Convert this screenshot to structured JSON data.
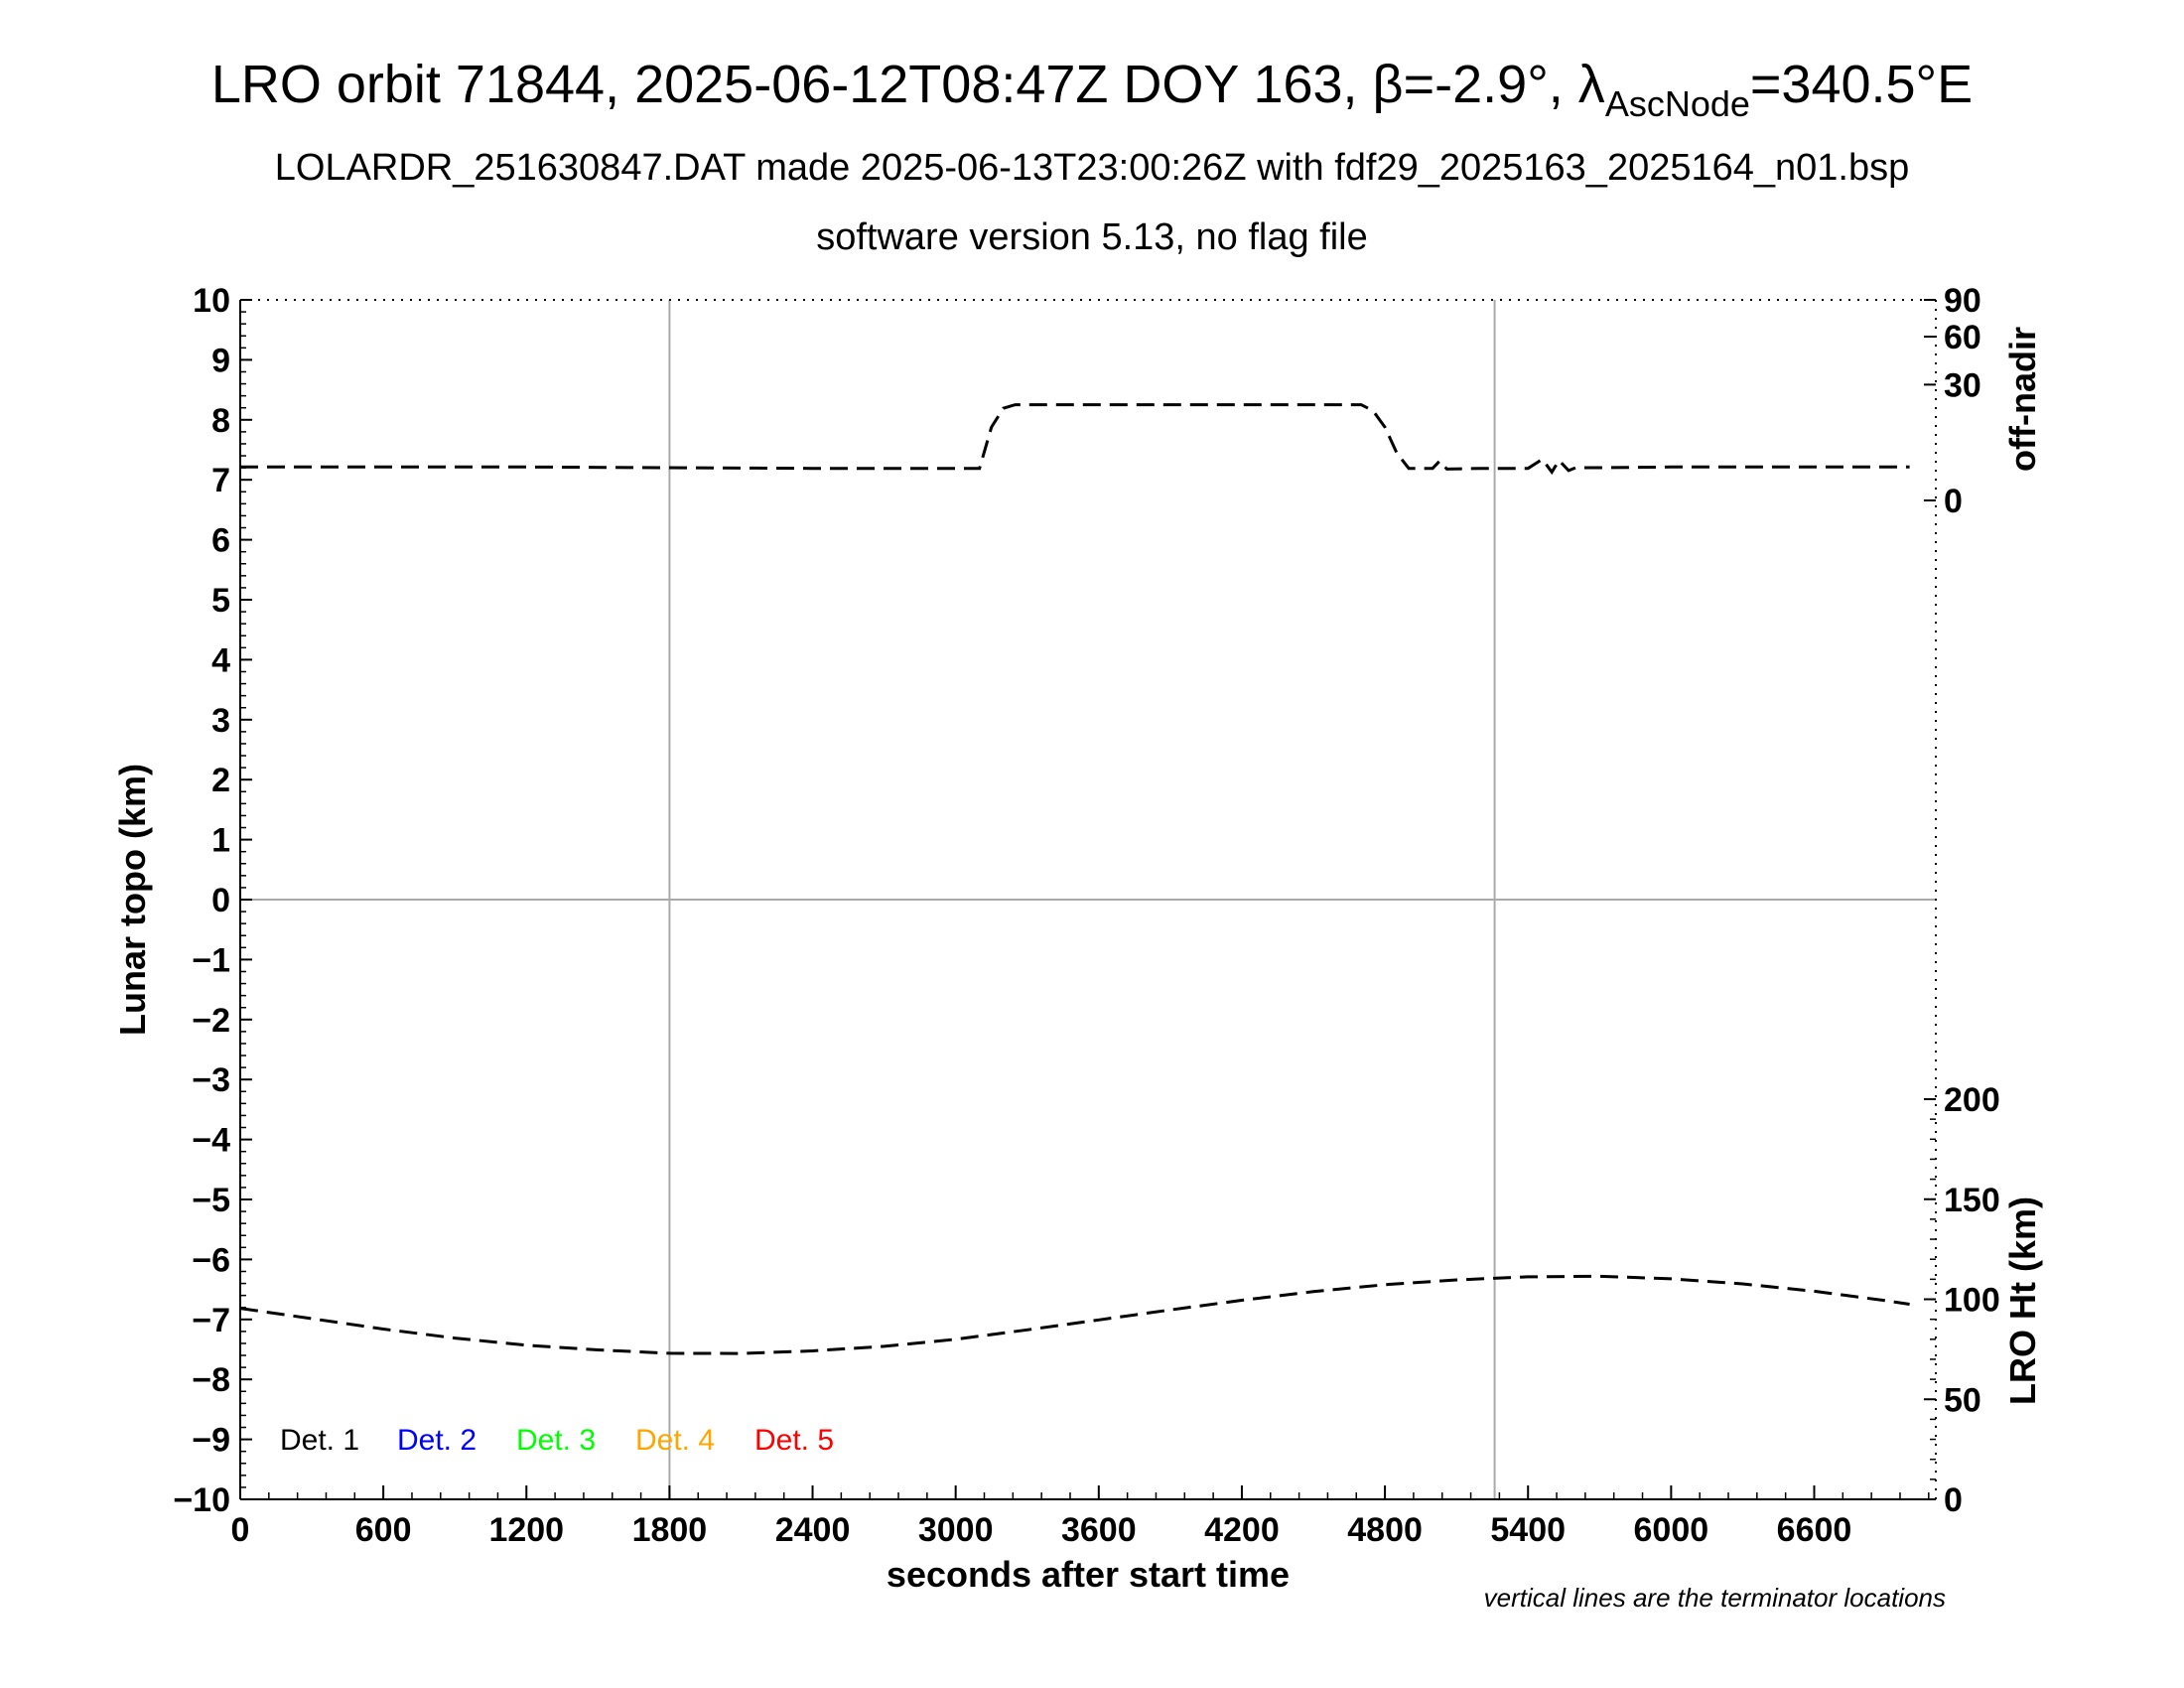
{
  "title": {
    "line1_main": "LRO orbit 71844, 2025-06-12T08:47Z DOY 163, β=-2.9°, λ",
    "line1_sub": "AscNode",
    "line1_end": "=340.5°E",
    "line2": "LOLARDR_251630847.DAT made 2025-06-13T23:00:26Z with fdf29_2025163_2025164_n01.bsp",
    "line3": "software version 5.13, no flag file"
  },
  "note": "vertical lines are the terminator locations",
  "chart_data": {
    "type": "line",
    "xlabel": "seconds after start time",
    "ylabel": "Lunar topo (km)",
    "y2_top_label": "off-nadir",
    "y2_bottom_label": "LRO Ht (km)",
    "xlim": [
      0,
      7110
    ],
    "ylim": [
      -10,
      10
    ],
    "x_ticks": [
      0,
      600,
      1200,
      1800,
      2400,
      3000,
      3600,
      4200,
      4800,
      5400,
      6000,
      6600
    ],
    "x_tick_labels": [
      "0",
      "600",
      "1200",
      "1800",
      "2400",
      "3000",
      "3600",
      "4200",
      "4800",
      "5400",
      "6000",
      "6600"
    ],
    "y_ticks": [
      10,
      9,
      8,
      7,
      6,
      5,
      4,
      3,
      2,
      1,
      0,
      -1,
      -2,
      -3,
      -4,
      -5,
      -6,
      -7,
      -8,
      -9,
      -10
    ],
    "y_tick_labels": [
      "10",
      "9",
      "8",
      "7",
      "6",
      "5",
      "4",
      "3",
      "2",
      "1",
      "0",
      "−1",
      "−2",
      "−3",
      "−4",
      "−5",
      "−6",
      "−7",
      "−8",
      "−9",
      "−10"
    ],
    "offnadir_ticks": [
      0,
      30,
      60,
      90
    ],
    "offnadir_tick_labels": [
      "0",
      "30",
      "60",
      "90"
    ],
    "ht_ticks": [
      0,
      50,
      100,
      150,
      200
    ],
    "ht_tick_labels": [
      "0",
      "50",
      "100",
      "150",
      "200"
    ],
    "terminator_x": [
      1800,
      5260
    ],
    "grid": "horizontal line at 0 and vertical terminator lines",
    "legend": [
      {
        "label": "Det. 1",
        "color": "#000000"
      },
      {
        "label": "Det. 2",
        "color": "#0000ff"
      },
      {
        "label": "Det. 3",
        "color": "#00ff00"
      },
      {
        "label": "Det. 4",
        "color": "#ffa500"
      },
      {
        "label": "Det. 5",
        "color": "#ff0000"
      }
    ],
    "legend_position": "bottom-left",
    "series": [
      {
        "name": "off-nadir",
        "axis": "off-nadir (deg)",
        "style": "dashed",
        "color": "#000000",
        "x": [
          0,
          600,
          1200,
          1800,
          2400,
          3000,
          3100,
          3150,
          3200,
          3250,
          3600,
          4200,
          4700,
          4750,
          4800,
          4850,
          4900,
          5000,
          5030,
          5060,
          5200,
          5350,
          5400,
          5460,
          5500,
          5530,
          5570,
          5600,
          5700,
          6000,
          6600,
          7000
        ],
        "y": [
          2.5,
          2.5,
          2.5,
          2.4,
          2.3,
          2.3,
          2.3,
          12,
          19,
          20.5,
          20.5,
          20.5,
          20.5,
          18,
          12,
          5,
          2.3,
          2.3,
          3.5,
          2.2,
          2.3,
          2.3,
          2.3,
          3.8,
          1.8,
          3.6,
          2.0,
          2.4,
          2.4,
          2.5,
          2.5,
          2.5
        ]
      },
      {
        "name": "LRO Ht",
        "axis": "LRO Ht (km)",
        "style": "dashed",
        "color": "#000000",
        "x": [
          0,
          300,
          600,
          900,
          1200,
          1500,
          1800,
          2100,
          2400,
          2700,
          3000,
          3300,
          3600,
          3900,
          4200,
          4500,
          4800,
          5100,
          5400,
          5700,
          6000,
          6300,
          6600,
          6900,
          7000
        ],
        "y": [
          95.5,
          90.3,
          85.1,
          80.6,
          77.0,
          74.7,
          73.0,
          72.9,
          74.2,
          76.5,
          80.0,
          84.7,
          89.7,
          94.7,
          99.5,
          103.8,
          107.3,
          109.7,
          111.2,
          111.5,
          110.2,
          107.7,
          104.0,
          99.3,
          97.5
        ]
      }
    ]
  }
}
